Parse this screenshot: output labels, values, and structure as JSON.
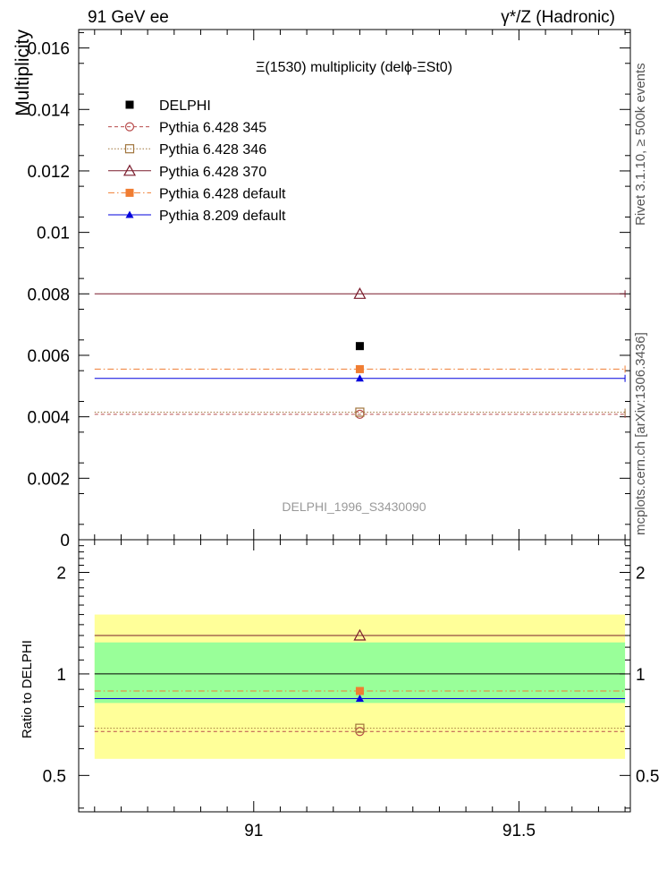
{
  "header": {
    "left": "91 GeV ee",
    "right": "γ*/Z (Hadronic)"
  },
  "side_labels": {
    "rivet": "Rivet 3.1.10, ≥ 500k events",
    "mcplots": "mcplots.cern.ch [arXiv:1306.3436]"
  },
  "chart_data": [
    {
      "type": "scatter",
      "title": "Ξ(1530) multiplicity (delϕ-ΞSt0)",
      "watermark": "DELPHI_1996_S3430090",
      "ylabel": "Multiplicity",
      "xlim": [
        90.67,
        91.71
      ],
      "ylim": [
        0,
        0.0166
      ],
      "x_ticks": [
        91,
        91.5
      ],
      "y_ticks": [
        "0",
        "0.002",
        "0.004",
        "0.006",
        "0.008",
        "0.01",
        "0.012",
        "0.014",
        "0.016"
      ],
      "x_span": [
        90.7,
        91.7
      ],
      "x": [
        91.2
      ],
      "legend_position": "top-left",
      "series": [
        {
          "name": "DELPHI",
          "values": [
            0.0063
          ],
          "color": "#000000",
          "marker": "filled-square",
          "line": "none"
        },
        {
          "name": "Pythia 6.428 345",
          "values": [
            0.00408
          ],
          "color": "#b84c4c",
          "marker": "open-circle",
          "line": "dashed"
        },
        {
          "name": "Pythia 6.428 346",
          "values": [
            0.00415
          ],
          "color": "#a0743c",
          "marker": "open-square",
          "line": "dotted"
        },
        {
          "name": "Pythia 6.428 370",
          "values": [
            0.008
          ],
          "color": "#7a1c2c",
          "marker": "open-triangle",
          "line": "solid"
        },
        {
          "name": "Pythia 6.428 default",
          "values": [
            0.00555
          ],
          "color": "#f07d32",
          "marker": "filled-square",
          "line": "dashdot"
        },
        {
          "name": "Pythia 8.209 default",
          "values": [
            0.00525
          ],
          "color": "#0000dd",
          "marker": "filled-triangle",
          "line": "solid"
        }
      ]
    },
    {
      "type": "scatter",
      "ylabel": "Ratio to DELPHI",
      "ylim": [
        0.39,
        2.5
      ],
      "y_ticks": [
        "0.5",
        "1",
        "2"
      ],
      "band_inner": [
        0.82,
        1.24
      ],
      "band_outer": [
        0.56,
        1.5
      ],
      "band_colors": {
        "inner": "#99ff99",
        "outer": "#ffff99"
      },
      "x": [
        91.2
      ],
      "series": [
        {
          "name": "DELPHI",
          "values": [
            1.0
          ]
        },
        {
          "name": "Pythia 6.428 345",
          "values": [
            0.675
          ]
        },
        {
          "name": "Pythia 6.428 346",
          "values": [
            0.69
          ]
        },
        {
          "name": "Pythia 6.428 370",
          "values": [
            1.3
          ]
        },
        {
          "name": "Pythia 6.428 default",
          "values": [
            0.89
          ]
        },
        {
          "name": "Pythia 8.209 default",
          "values": [
            0.845
          ]
        }
      ]
    }
  ]
}
